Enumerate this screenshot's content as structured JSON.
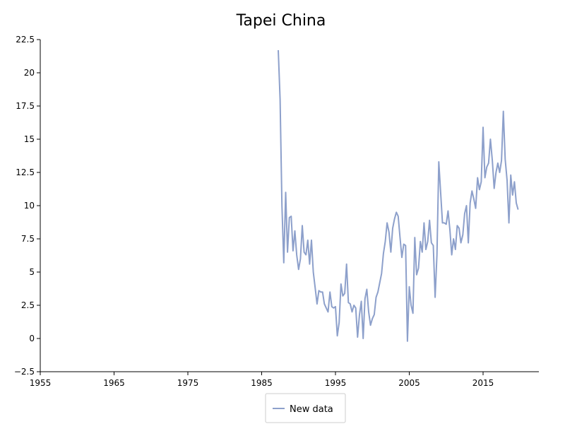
{
  "chart_data": {
    "type": "line",
    "title": "Tapei China",
    "xlabel": "",
    "ylabel": "",
    "xlim": [
      1955,
      2022
    ],
    "ylim": [
      -2.5,
      22.5
    ],
    "x_ticks": [
      "1955",
      "1965",
      "1975",
      "1985",
      "1995",
      "2005",
      "2015"
    ],
    "y_ticks": [
      "−2.5",
      "0",
      "2.5",
      "5",
      "7.5",
      "10",
      "12.5",
      "15",
      "17.5",
      "20",
      "22.5"
    ],
    "grid": false,
    "legend_position": "bottom-center",
    "series": [
      {
        "name": "New data",
        "color": "#8da0cb",
        "x": [
          1987.25,
          1987.5,
          1987.75,
          1988.0,
          1988.25,
          1988.5,
          1988.75,
          1989.0,
          1989.25,
          1989.5,
          1989.75,
          1990.0,
          1990.25,
          1990.5,
          1990.75,
          1991.0,
          1991.25,
          1991.5,
          1991.75,
          1992.0,
          1992.25,
          1992.5,
          1992.75,
          1993.0,
          1993.25,
          1993.5,
          1993.75,
          1994.0,
          1994.25,
          1994.5,
          1994.75,
          1995.0,
          1995.25,
          1995.5,
          1995.75,
          1996.0,
          1996.25,
          1996.5,
          1996.75,
          1997.0,
          1997.25,
          1997.5,
          1997.75,
          1998.0,
          1998.25,
          1998.5,
          1998.75,
          1999.0,
          1999.25,
          1999.5,
          1999.75,
          2000.0,
          2000.25,
          2000.5,
          2000.75,
          2001.0,
          2001.25,
          2001.5,
          2001.75,
          2002.0,
          2002.25,
          2002.5,
          2002.75,
          2003.0,
          2003.25,
          2003.5,
          2003.75,
          2004.0,
          2004.25,
          2004.5,
          2004.75,
          2005.0,
          2005.25,
          2005.5,
          2005.75,
          2006.0,
          2006.25,
          2006.5,
          2006.75,
          2007.0,
          2007.25,
          2007.5,
          2007.75,
          2008.0,
          2008.25,
          2008.5,
          2008.75,
          2009.0,
          2009.25,
          2009.5,
          2009.75,
          2010.0,
          2010.25,
          2010.5,
          2010.75,
          2011.0,
          2011.25,
          2011.5,
          2011.75,
          2012.0,
          2012.25,
          2012.5,
          2012.75,
          2013.0,
          2013.25,
          2013.5,
          2013.75,
          2014.0,
          2014.25,
          2014.5,
          2014.75,
          2015.0,
          2015.25,
          2015.5,
          2015.75,
          2016.0,
          2016.25,
          2016.5,
          2016.75,
          2017.0,
          2017.25,
          2017.5,
          2017.75,
          2018.0,
          2018.25,
          2018.5,
          2018.75,
          2019.0,
          2019.25,
          2019.5,
          2019.75
        ],
        "values": [
          21.7,
          18.0,
          10.0,
          5.7,
          11.0,
          6.5,
          9.1,
          9.2,
          6.6,
          8.1,
          6.3,
          5.2,
          6.0,
          8.5,
          6.5,
          6.3,
          7.4,
          5.6,
          7.4,
          5.0,
          3.8,
          2.6,
          3.6,
          3.5,
          3.5,
          2.6,
          2.3,
          2.0,
          3.5,
          2.4,
          2.3,
          2.4,
          0.2,
          1.2,
          4.1,
          3.2,
          3.4,
          5.6,
          2.7,
          2.6,
          2.0,
          2.5,
          2.3,
          0.1,
          1.8,
          2.8,
          0.0,
          3.0,
          3.7,
          2.0,
          1.0,
          1.5,
          1.8,
          3.1,
          3.5,
          4.2,
          4.9,
          6.4,
          7.3,
          8.7,
          8.0,
          6.5,
          8.3,
          9.0,
          9.5,
          9.2,
          7.6,
          6.1,
          7.1,
          7.0,
          -0.2,
          3.9,
          2.5,
          1.9,
          7.6,
          4.8,
          5.3,
          7.3,
          6.5,
          8.7,
          6.7,
          7.3,
          8.9,
          7.2,
          7.0,
          3.1,
          6.3,
          13.3,
          11.0,
          8.7,
          8.7,
          8.6,
          9.6,
          8.2,
          6.3,
          7.5,
          6.7,
          8.5,
          8.3,
          7.2,
          7.8,
          9.4,
          10.0,
          7.2,
          10.2,
          11.1,
          10.5,
          9.8,
          12.1,
          11.2,
          11.8,
          15.9,
          12.1,
          12.9,
          13.2,
          15.0,
          13.4,
          11.3,
          12.5,
          13.2,
          12.5,
          13.4,
          17.1,
          13.5,
          11.9,
          8.7,
          12.3,
          10.8,
          11.8,
          10.2,
          9.7
        ]
      }
    ]
  }
}
